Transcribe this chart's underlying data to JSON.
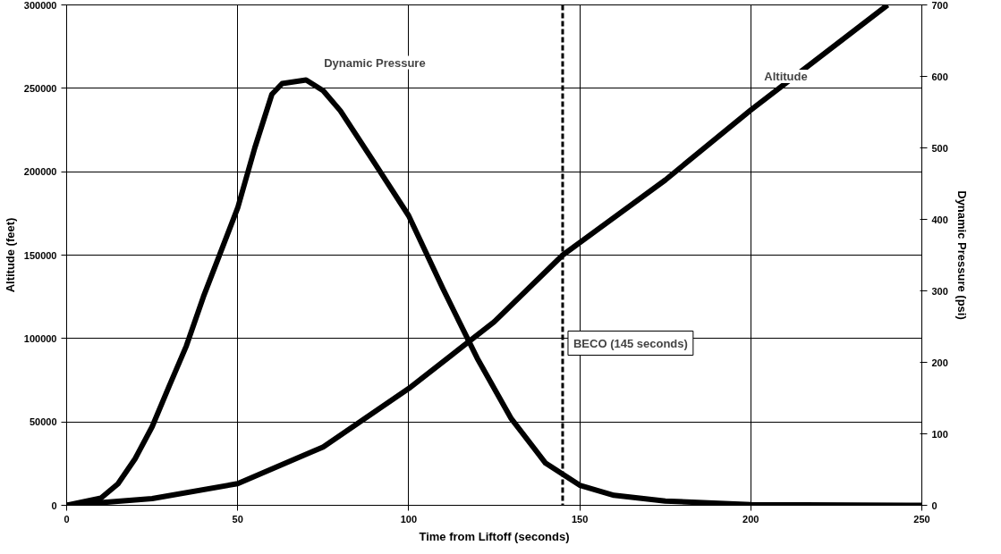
{
  "chart_data": {
    "type": "line",
    "xlabel": "Time from Liftoff (seconds)",
    "ylabel": "Altitude (feet)",
    "y2label": "Dynamic Pressure (psi)",
    "xlim": [
      0,
      250
    ],
    "xticks": [
      0,
      50,
      100,
      150,
      200,
      250
    ],
    "ylim": [
      0,
      300000
    ],
    "yticks": [
      0,
      50000,
      100000,
      150000,
      200000,
      250000,
      300000
    ],
    "y2lim": [
      0,
      700
    ],
    "y2ticks": [
      0,
      100,
      200,
      300,
      400,
      500,
      600,
      700
    ],
    "grid": true,
    "line_style": "solid",
    "marker": "none",
    "series": [
      {
        "name": "Dynamic Pressure",
        "color": "#000000",
        "axis": "y2",
        "x": [
          0,
          10,
          15,
          20,
          25,
          30,
          35,
          40,
          45,
          50,
          55,
          60,
          63,
          70,
          75,
          80,
          90,
          100,
          110,
          120,
          130,
          140,
          150,
          160,
          175,
          200,
          250
        ],
        "values": [
          0,
          10,
          30,
          65,
          110,
          167,
          223,
          292,
          354,
          416,
          500,
          575,
          590,
          595,
          580,
          552,
          479,
          405,
          303,
          206,
          121,
          59,
          28,
          14,
          6,
          1,
          0
        ]
      },
      {
        "name": "Altitude",
        "color": "#000000",
        "x": [
          0,
          25,
          50,
          75,
          100,
          125,
          145,
          175,
          200,
          240
        ],
        "values": [
          0,
          4000,
          13000,
          35000,
          70000,
          110000,
          150000,
          195000,
          237000,
          300000
        ]
      }
    ],
    "ref_lines": [
      {
        "axis": "x",
        "value": 145,
        "label": "BECO (145 seconds)",
        "line_style": "dashed",
        "color": "#000000"
      }
    ]
  }
}
